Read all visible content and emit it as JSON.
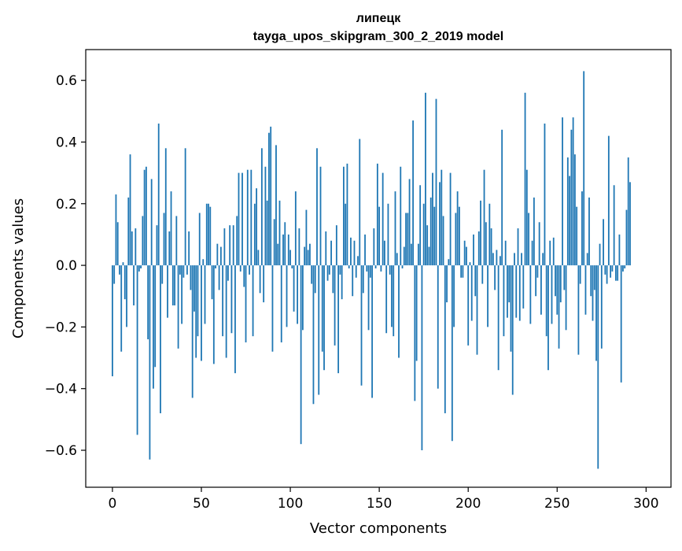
{
  "chart_data": {
    "type": "bar",
    "title": "липецк",
    "subtitle": "tayga_upos_skipgram_300_2_2019 model",
    "xlabel": "Vector components",
    "ylabel": "Components values",
    "xlim": [
      -15,
      314
    ],
    "ylim": [
      -0.72,
      0.7
    ],
    "xticks": [
      0,
      50,
      100,
      150,
      200,
      250,
      300
    ],
    "yticks": [
      -0.6,
      -0.4,
      -0.2,
      0.0,
      0.2,
      0.4,
      0.6
    ],
    "xtick_labels": [
      "0",
      "50",
      "100",
      "150",
      "200",
      "250",
      "300"
    ],
    "ytick_labels": [
      "−0.6",
      "−0.4",
      "−0.2",
      "0.0",
      "0.2",
      "0.4",
      "0.6"
    ],
    "bar_color": "#1f77b4",
    "grid": false,
    "values": [
      -0.36,
      -0.06,
      0.23,
      0.14,
      -0.03,
      -0.28,
      0.01,
      -0.11,
      -0.2,
      0.22,
      0.36,
      0.11,
      -0.13,
      0.12,
      -0.55,
      -0.02,
      -0.01,
      0.16,
      0.31,
      0.32,
      -0.24,
      -0.63,
      0.28,
      -0.4,
      -0.33,
      0.13,
      0.46,
      -0.48,
      -0.06,
      0.17,
      0.38,
      -0.17,
      0.11,
      0.24,
      -0.13,
      -0.13,
      0.16,
      -0.27,
      -0.03,
      -0.19,
      -0.04,
      0.38,
      -0.03,
      0.11,
      -0.08,
      -0.43,
      -0.15,
      -0.3,
      -0.23,
      0.17,
      -0.31,
      0.02,
      -0.19,
      0.2,
      0.2,
      0.19,
      -0.11,
      -0.32,
      -0.01,
      0.07,
      -0.08,
      0.06,
      -0.23,
      0.12,
      -0.3,
      -0.05,
      0.13,
      -0.22,
      0.13,
      -0.35,
      0.16,
      0.3,
      -0.02,
      0.3,
      -0.07,
      -0.25,
      0.31,
      -0.03,
      0.31,
      -0.23,
      0.2,
      0.25,
      0.05,
      -0.09,
      0.38,
      -0.12,
      0.32,
      0.21,
      0.43,
      0.45,
      -0.28,
      0.15,
      0.39,
      0.07,
      0.21,
      -0.25,
      0.1,
      0.14,
      -0.2,
      0.1,
      0.05,
      -0.01,
      -0.15,
      0.24,
      -0.19,
      0.12,
      -0.58,
      -0.21,
      0.06,
      0.18,
      0.05,
      0.07,
      -0.06,
      -0.45,
      -0.09,
      0.38,
      -0.42,
      0.32,
      -0.28,
      -0.34,
      0.11,
      -0.05,
      -0.03,
      0.08,
      -0.09,
      -0.26,
      0.13,
      -0.35,
      -0.03,
      -0.11,
      0.32,
      0.2,
      0.33,
      -0.01,
      0.09,
      -0.1,
      0.08,
      -0.04,
      0.03,
      0.41,
      -0.39,
      -0.09,
      0.1,
      -0.02,
      -0.21,
      -0.04,
      -0.43,
      0.12,
      -0.01,
      0.33,
      0.19,
      -0.02,
      0.3,
      0.08,
      -0.22,
      0.2,
      -0.03,
      -0.2,
      -0.23,
      0.24,
      0.04,
      -0.3,
      0.32,
      -0.01,
      0.06,
      0.17,
      0.17,
      0.28,
      0.07,
      0.47,
      -0.44,
      -0.31,
      0.07,
      0.26,
      -0.6,
      0.2,
      0.56,
      0.13,
      0.06,
      0.22,
      0.3,
      0.19,
      0.54,
      -0.4,
      0.27,
      0.31,
      0.16,
      -0.48,
      -0.12,
      0.02,
      0.3,
      -0.57,
      -0.2,
      0.17,
      0.24,
      0.19,
      -0.04,
      -0.04,
      0.08,
      0.06,
      -0.26,
      0.01,
      -0.18,
      0.1,
      -0.1,
      -0.29,
      0.11,
      0.21,
      -0.06,
      0.31,
      0.14,
      -0.2,
      0.2,
      0.12,
      0.04,
      -0.08,
      0.05,
      -0.34,
      0.03,
      0.44,
      -0.23,
      0.08,
      -0.17,
      -0.12,
      -0.28,
      -0.42,
      0.04,
      -0.17,
      0.12,
      -0.18,
      0.04,
      -0.14,
      0.56,
      0.31,
      0.17,
      -0.19,
      0.08,
      0.22,
      -0.1,
      -0.04,
      0.14,
      -0.16,
      0.04,
      0.46,
      -0.23,
      -0.34,
      0.08,
      -0.19,
      0.09,
      -0.1,
      -0.16,
      -0.27,
      -0.12,
      0.48,
      -0.08,
      -0.21,
      0.35,
      0.29,
      0.44,
      0.48,
      0.36,
      0.19,
      -0.29,
      -0.06,
      0.24,
      0.63,
      -0.16,
      0.04,
      0.22,
      -0.1,
      -0.18,
      -0.08,
      -0.31,
      -0.66,
      0.07,
      -0.27,
      0.15,
      -0.03,
      -0.06,
      0.42,
      -0.04,
      -0.02,
      0.26,
      -0.05,
      -0.05,
      0.1,
      -0.38,
      -0.02,
      -0.01,
      0.18,
      0.35,
      0.27
    ]
  }
}
